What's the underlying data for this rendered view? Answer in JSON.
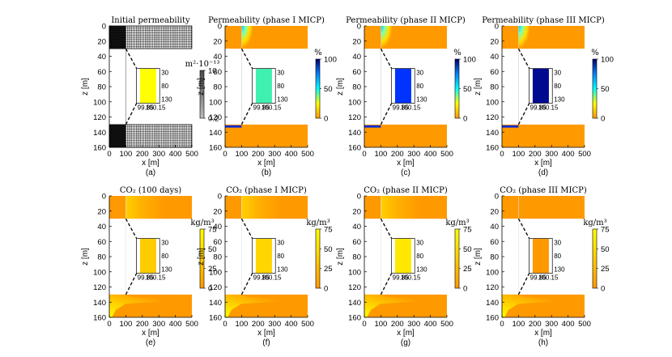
{
  "chart_data": [
    {
      "type": "heatmap",
      "id": "a",
      "title": "Initial permeability",
      "caption": "(a)",
      "variant": "grid",
      "xlabel": "x [m]",
      "ylabel": "z [m]",
      "xlim": [
        0,
        500
      ],
      "ylim": [
        160,
        0
      ],
      "xticks": [
        "0",
        "100",
        "200",
        "300",
        "400",
        "500"
      ],
      "yticks": [
        "0",
        "20",
        "40",
        "60",
        "80",
        "100",
        "120",
        "140",
        "160"
      ],
      "colorbar": {
        "unit": "m²·10⁻¹³",
        "ticks": [
          "10",
          "0.2"
        ],
        "colors": [
          "#4a4a4a",
          "#bdbdbd"
        ]
      },
      "inset": {
        "xticks": [
          "99.85",
          "100.15"
        ],
        "zticks": [
          "30",
          "80",
          "130"
        ],
        "fill": "#ffff00"
      }
    },
    {
      "type": "heatmap",
      "id": "b",
      "title": "Permeability (phase I MICP)",
      "caption": "(b)",
      "variant": "perm",
      "xlabel": "x [m]",
      "ylabel": "z [m]",
      "xlim": [
        0,
        500
      ],
      "ylim": [
        160,
        0
      ],
      "xticks": [
        "0",
        "100",
        "200",
        "300",
        "400",
        "500"
      ],
      "yticks": [
        "0",
        "20",
        "40",
        "60",
        "80",
        "100",
        "120",
        "140",
        "160"
      ],
      "colorbar": {
        "unit": "%",
        "ticks": [
          "100",
          "50",
          "0"
        ],
        "colors": [
          "#00006e",
          "#0080ff",
          "#00ffff",
          "#ffff00",
          "#ff9900"
        ]
      },
      "inset": {
        "xticks": [
          "99.85",
          "100.15"
        ],
        "zticks": [
          "30",
          "80",
          "130"
        ],
        "fill": "#40f0b0"
      }
    },
    {
      "type": "heatmap",
      "id": "c",
      "title": "Permeability (phase II MICP)",
      "caption": "(c)",
      "variant": "perm",
      "xlabel": "x [m]",
      "ylabel": "z [m]",
      "xlim": [
        0,
        500
      ],
      "ylim": [
        160,
        0
      ],
      "xticks": [
        "0",
        "100",
        "200",
        "300",
        "400",
        "500"
      ],
      "yticks": [
        "0",
        "20",
        "40",
        "60",
        "80",
        "100",
        "120",
        "140",
        "160"
      ],
      "colorbar": {
        "unit": "%",
        "ticks": [
          "100",
          "50",
          "0"
        ],
        "colors": [
          "#00006e",
          "#0080ff",
          "#00ffff",
          "#ffff00",
          "#ff9900"
        ]
      },
      "inset": {
        "xticks": [
          "99.85",
          "100.15"
        ],
        "zticks": [
          "30",
          "80",
          "130"
        ],
        "fill": "#0033ff"
      }
    },
    {
      "type": "heatmap",
      "id": "d",
      "title": "Permeability (phase III MICP)",
      "caption": "(d)",
      "variant": "perm",
      "xlabel": "x [m]",
      "ylabel": "z [m]",
      "xlim": [
        0,
        500
      ],
      "ylim": [
        160,
        0
      ],
      "xticks": [
        "0",
        "100",
        "200",
        "300",
        "400",
        "500"
      ],
      "yticks": [
        "0",
        "20",
        "40",
        "60",
        "80",
        "100",
        "120",
        "140",
        "160"
      ],
      "colorbar": {
        "unit": "%",
        "ticks": [
          "100",
          "50",
          "0"
        ],
        "colors": [
          "#00006e",
          "#0080ff",
          "#00ffff",
          "#ffff00",
          "#ff9900"
        ]
      },
      "inset": {
        "xticks": [
          "99.85",
          "100.15"
        ],
        "zticks": [
          "30",
          "80",
          "130"
        ],
        "fill": "#000a90"
      }
    },
    {
      "type": "heatmap",
      "id": "e",
      "title": "CO₂ (100 days)",
      "caption": "(e)",
      "variant": "co2",
      "xlabel": "x [m]",
      "ylabel": "z [m]",
      "xlim": [
        0,
        500
      ],
      "ylim": [
        160,
        0
      ],
      "xticks": [
        "0",
        "100",
        "200",
        "300",
        "400",
        "500"
      ],
      "yticks": [
        "0",
        "20",
        "40",
        "60",
        "80",
        "100",
        "120",
        "140",
        "160"
      ],
      "colorbar": {
        "unit": "kg/m³",
        "ticks": [
          "75",
          "50",
          "25",
          "0"
        ],
        "colors": [
          "#ffff00",
          "#ffcc00",
          "#ff9900"
        ]
      },
      "inset": {
        "xticks": [
          "99.85",
          "100.15"
        ],
        "zticks": [
          "30",
          "80",
          "130"
        ],
        "fill": "#ffcc00"
      }
    },
    {
      "type": "heatmap",
      "id": "f",
      "title": "CO₂ (phase I MICP)",
      "caption": "(f)",
      "variant": "co2",
      "xlabel": "x [m]",
      "ylabel": "z [m]",
      "xlim": [
        0,
        500
      ],
      "ylim": [
        160,
        0
      ],
      "xticks": [
        "0",
        "100",
        "200",
        "300",
        "400",
        "500"
      ],
      "yticks": [
        "0",
        "20",
        "40",
        "60",
        "80",
        "100",
        "120",
        "140",
        "160"
      ],
      "colorbar": {
        "unit": "kg/m³",
        "ticks": [
          "75",
          "50",
          "25",
          "0"
        ],
        "colors": [
          "#ffff00",
          "#ffcc00",
          "#ff9900"
        ]
      },
      "inset": {
        "xticks": [
          "99.85",
          "100.15"
        ],
        "zticks": [
          "30",
          "80",
          "130"
        ],
        "fill": "#ffd600"
      }
    },
    {
      "type": "heatmap",
      "id": "g",
      "title": "CO₂ (phase II MICP)",
      "caption": "(g)",
      "variant": "co2",
      "xlabel": "x [m]",
      "ylabel": "z [m]",
      "xlim": [
        0,
        500
      ],
      "ylim": [
        160,
        0
      ],
      "xticks": [
        "0",
        "100",
        "200",
        "300",
        "400",
        "500"
      ],
      "yticks": [
        "0",
        "20",
        "40",
        "60",
        "80",
        "100",
        "120",
        "140",
        "160"
      ],
      "colorbar": {
        "unit": "kg/m³",
        "ticks": [
          "75",
          "50",
          "25",
          "0"
        ],
        "colors": [
          "#ffff00",
          "#ffcc00",
          "#ff9900"
        ]
      },
      "inset": {
        "xticks": [
          "99.85",
          "100.15"
        ],
        "zticks": [
          "30",
          "80",
          "130"
        ],
        "fill": "#ffe800"
      }
    },
    {
      "type": "heatmap",
      "id": "h",
      "title": "CO₂ (phase III MICP)",
      "caption": "(h)",
      "variant": "co2",
      "xlabel": "x [m]",
      "ylabel": "z [m]",
      "xlim": [
        0,
        500
      ],
      "ylim": [
        160,
        0
      ],
      "xticks": [
        "0",
        "100",
        "200",
        "300",
        "400",
        "500"
      ],
      "yticks": [
        "0",
        "20",
        "40",
        "60",
        "80",
        "100",
        "120",
        "140",
        "160"
      ],
      "colorbar": {
        "unit": "kg/m³",
        "ticks": [
          "75",
          "50",
          "25",
          "0"
        ],
        "colors": [
          "#ffff00",
          "#ffcc00",
          "#ff9900"
        ]
      },
      "inset": {
        "xticks": [
          "99.85",
          "100.15"
        ],
        "zticks": [
          "30",
          "80",
          "130"
        ],
        "fill": "#ff9900"
      }
    }
  ]
}
